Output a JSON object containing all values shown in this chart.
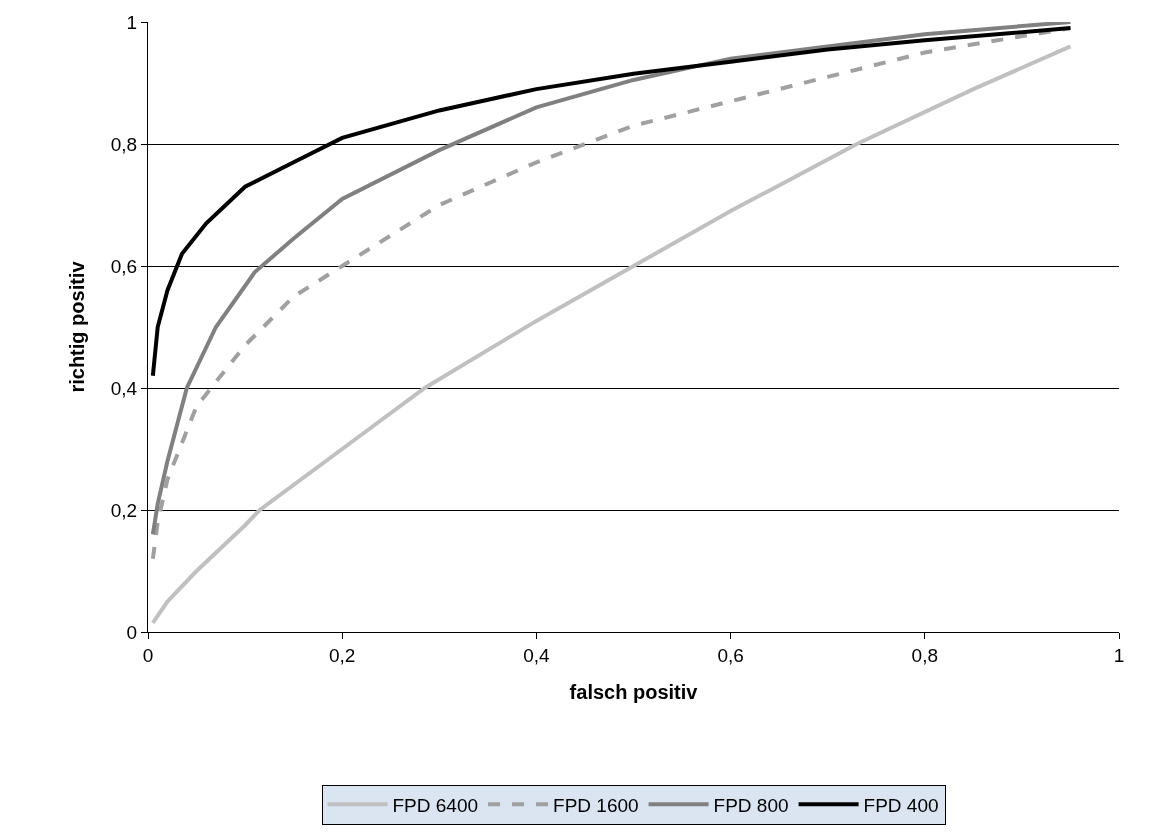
{
  "chart_data": {
    "type": "line",
    "xlabel": "falsch positiv",
    "ylabel": "richtig positiv",
    "xlim": [
      0,
      1
    ],
    "xticks": [
      0,
      {
        "value": 0.2,
        "label": "0,2"
      },
      {
        "value": 0.4,
        "label": "0,4"
      },
      {
        "value": 0.6,
        "label": "0,6"
      },
      {
        "value": 0.8,
        "label": "0,8"
      },
      1
    ],
    "ylim": [
      0,
      1
    ],
    "yticks": [
      0,
      {
        "value": 0.2,
        "label": "0,2"
      },
      {
        "value": 0.4,
        "label": "0,4"
      },
      {
        "value": 0.6,
        "label": "0,6"
      },
      {
        "value": 0.8,
        "label": "0,8"
      },
      1
    ],
    "grid": "y",
    "legend": "bottom",
    "marker": "none",
    "series": [
      {
        "name": "FPD 6400",
        "color": "#c0c0c0",
        "line_style": "solid",
        "x": [
          0.005,
          0.02,
          0.05,
          0.1,
          0.115,
          0.2,
          0.285,
          0.4,
          0.5,
          0.6,
          0.73,
          0.85,
          0.95
        ],
        "values": [
          0.015,
          0.05,
          0.1,
          0.175,
          0.2,
          0.3,
          0.4,
          0.51,
          0.6,
          0.69,
          0.8,
          0.89,
          0.96
        ]
      },
      {
        "name": "FPD 1600",
        "color": "#a0a0a0",
        "line_style": "dashed",
        "x": [
          0.005,
          0.01,
          0.02,
          0.05,
          0.1,
          0.15,
          0.2,
          0.3,
          0.4,
          0.5,
          0.6,
          0.7,
          0.8,
          0.95
        ],
        "values": [
          0.12,
          0.18,
          0.25,
          0.37,
          0.47,
          0.55,
          0.6,
          0.7,
          0.77,
          0.83,
          0.87,
          0.91,
          0.95,
          0.99
        ]
      },
      {
        "name": "FPD 800",
        "color": "#808080",
        "line_style": "solid",
        "x": [
          0.005,
          0.01,
          0.02,
          0.04,
          0.07,
          0.11,
          0.15,
          0.2,
          0.3,
          0.4,
          0.5,
          0.6,
          0.7,
          0.8,
          0.95
        ],
        "values": [
          0.16,
          0.21,
          0.28,
          0.4,
          0.5,
          0.59,
          0.645,
          0.71,
          0.79,
          0.86,
          0.905,
          0.94,
          0.96,
          0.98,
          1.0
        ]
      },
      {
        "name": "FPD 400",
        "color": "#000000",
        "line_style": "solid",
        "x": [
          0.005,
          0.01,
          0.02,
          0.035,
          0.06,
          0.1,
          0.15,
          0.2,
          0.3,
          0.4,
          0.5,
          0.6,
          0.7,
          0.8,
          0.95
        ],
        "values": [
          0.42,
          0.5,
          0.56,
          0.62,
          0.67,
          0.73,
          0.77,
          0.81,
          0.855,
          0.89,
          0.915,
          0.935,
          0.955,
          0.97,
          0.99
        ]
      }
    ]
  }
}
